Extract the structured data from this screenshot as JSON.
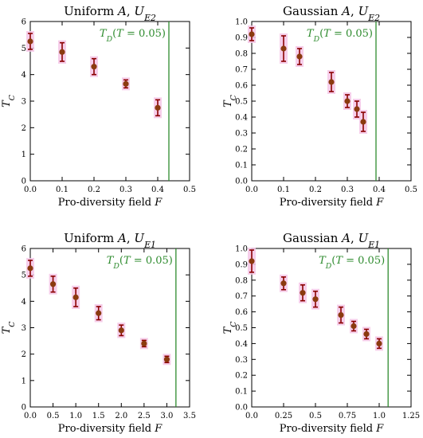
{
  "colors": {
    "marker": "#8b3a0f",
    "errorbar": "#8b0000",
    "shade": "#f5c6e6",
    "reference_line": "#2e8b2e",
    "axis": "#000000"
  },
  "chart_data": [
    {
      "type": "scatter",
      "title": "Uniform A, U_E2",
      "title_parts": [
        "Uniform ",
        "A",
        ", ",
        "U",
        "E2"
      ],
      "xlabel": "Pro-diversity field F",
      "xlabel_parts": [
        "Pro-diversity field ",
        "F"
      ],
      "ylabel": "T_C",
      "ylabel_parts": [
        "T",
        "C"
      ],
      "xlim": [
        0,
        0.5
      ],
      "ylim": [
        0,
        6
      ],
      "xticks": [
        "0.0",
        "0.1",
        "0.2",
        "0.3",
        "0.4",
        "0.5"
      ],
      "xtick_values": [
        0,
        0.1,
        0.2,
        0.3,
        0.4,
        0.5
      ],
      "yticks": [
        "0",
        "1",
        "2",
        "3",
        "4",
        "5",
        "6"
      ],
      "ytick_values": [
        0,
        1,
        2,
        3,
        4,
        5,
        6
      ],
      "grid": false,
      "series": [
        {
          "x": [
            0.0,
            0.1,
            0.2,
            0.3,
            0.4
          ],
          "y": [
            5.25,
            4.85,
            4.3,
            3.65,
            2.75
          ],
          "err": [
            0.3,
            0.35,
            0.3,
            0.15,
            0.3
          ]
        }
      ],
      "reference_line": {
        "x": 0.435,
        "label": "T_D(T = 0.05)",
        "label_parts": [
          "T",
          "D",
          "(",
          "T",
          " = 0.05)"
        ]
      }
    },
    {
      "type": "scatter",
      "title": "Gaussian A, U_E2",
      "title_parts": [
        "Gaussian ",
        "A",
        ", ",
        "U",
        "E2"
      ],
      "xlabel": "Pro-diversity field F",
      "xlabel_parts": [
        "Pro-diversity field ",
        "F"
      ],
      "ylabel": "T_C",
      "ylabel_parts": [
        "T",
        "C"
      ],
      "xlim": [
        0,
        0.5
      ],
      "ylim": [
        0,
        1.0
      ],
      "xticks": [
        "0.0",
        "0.1",
        "0.2",
        "0.3",
        "0.4",
        "0.5"
      ],
      "xtick_values": [
        0,
        0.1,
        0.2,
        0.3,
        0.4,
        0.5
      ],
      "yticks": [
        "0.0",
        "0.1",
        "0.2",
        "0.3",
        "0.4",
        "0.5",
        "0.6",
        "0.7",
        "0.8",
        "0.9",
        "1.0"
      ],
      "ytick_values": [
        0,
        0.1,
        0.2,
        0.3,
        0.4,
        0.5,
        0.6,
        0.7,
        0.8,
        0.9,
        1.0
      ],
      "grid": false,
      "series": [
        {
          "x": [
            0.0,
            0.1,
            0.15,
            0.25,
            0.3,
            0.33,
            0.35
          ],
          "y": [
            0.92,
            0.83,
            0.78,
            0.62,
            0.5,
            0.45,
            0.37
          ],
          "err": [
            0.04,
            0.08,
            0.05,
            0.06,
            0.04,
            0.05,
            0.06
          ]
        }
      ],
      "reference_line": {
        "x": 0.39,
        "label": "T_D(T = 0.05)",
        "label_parts": [
          "T",
          "D",
          "(",
          "T",
          " = 0.05)"
        ]
      }
    },
    {
      "type": "scatter",
      "title": "Uniform A, U_E1",
      "title_parts": [
        "Uniform ",
        "A",
        ", ",
        "U",
        "E1"
      ],
      "xlabel": "Pro-diversity field F",
      "xlabel_parts": [
        "Pro-diversity field ",
        "F"
      ],
      "ylabel": "T_C",
      "ylabel_parts": [
        "T",
        "C"
      ],
      "xlim": [
        0,
        3.5
      ],
      "ylim": [
        0,
        6
      ],
      "xticks": [
        "0.0",
        "0.5",
        "1.0",
        "1.5",
        "2.0",
        "2.5",
        "3.0",
        "3.5"
      ],
      "xtick_values": [
        0,
        0.5,
        1.0,
        1.5,
        2.0,
        2.5,
        3.0,
        3.5
      ],
      "yticks": [
        "0",
        "1",
        "2",
        "3",
        "4",
        "5",
        "6"
      ],
      "ytick_values": [
        0,
        1,
        2,
        3,
        4,
        5,
        6
      ],
      "grid": false,
      "series": [
        {
          "x": [
            0.0,
            0.5,
            1.0,
            1.5,
            2.0,
            2.5,
            3.0
          ],
          "y": [
            5.25,
            4.65,
            4.15,
            3.55,
            2.9,
            2.4,
            1.8
          ],
          "err": [
            0.3,
            0.3,
            0.35,
            0.25,
            0.2,
            0.12,
            0.12
          ]
        }
      ],
      "reference_line": {
        "x": 3.2,
        "label": "T_D(T = 0.05)",
        "label_parts": [
          "T",
          "D",
          "(",
          "T",
          " = 0.05)"
        ]
      }
    },
    {
      "type": "scatter",
      "title": "Gaussian A, U_E1",
      "title_parts": [
        "Gaussian ",
        "A",
        ", ",
        "U",
        "E1"
      ],
      "xlabel": "Pro-diversity field F",
      "xlabel_parts": [
        "Pro-diversity field ",
        "F"
      ],
      "ylabel": "T_C",
      "ylabel_parts": [
        "T",
        "C"
      ],
      "xlim": [
        0,
        1.25
      ],
      "ylim": [
        0,
        1.0
      ],
      "xticks": [
        "0.0",
        "0.25",
        "0.5",
        "0.75",
        "1.0",
        "1.25"
      ],
      "xtick_values": [
        0,
        0.25,
        0.5,
        0.75,
        1.0,
        1.25
      ],
      "yticks": [
        "0.0",
        "0.1",
        "0.2",
        "0.3",
        "0.4",
        "0.5",
        "0.6",
        "0.7",
        "0.8",
        "0.9",
        "1.0"
      ],
      "ytick_values": [
        0,
        0.1,
        0.2,
        0.3,
        0.4,
        0.5,
        0.6,
        0.7,
        0.8,
        0.9,
        1.0
      ],
      "grid": false,
      "series": [
        {
          "x": [
            0.0,
            0.25,
            0.4,
            0.5,
            0.7,
            0.8,
            0.9,
            1.0
          ],
          "y": [
            0.92,
            0.78,
            0.72,
            0.68,
            0.58,
            0.51,
            0.46,
            0.4
          ],
          "err": [
            0.07,
            0.04,
            0.05,
            0.05,
            0.05,
            0.03,
            0.03,
            0.03
          ]
        }
      ],
      "reference_line": {
        "x": 1.07,
        "label": "T_D(T = 0.05)",
        "label_parts": [
          "T",
          "D",
          "(",
          "T",
          " = 0.05)"
        ]
      }
    }
  ]
}
